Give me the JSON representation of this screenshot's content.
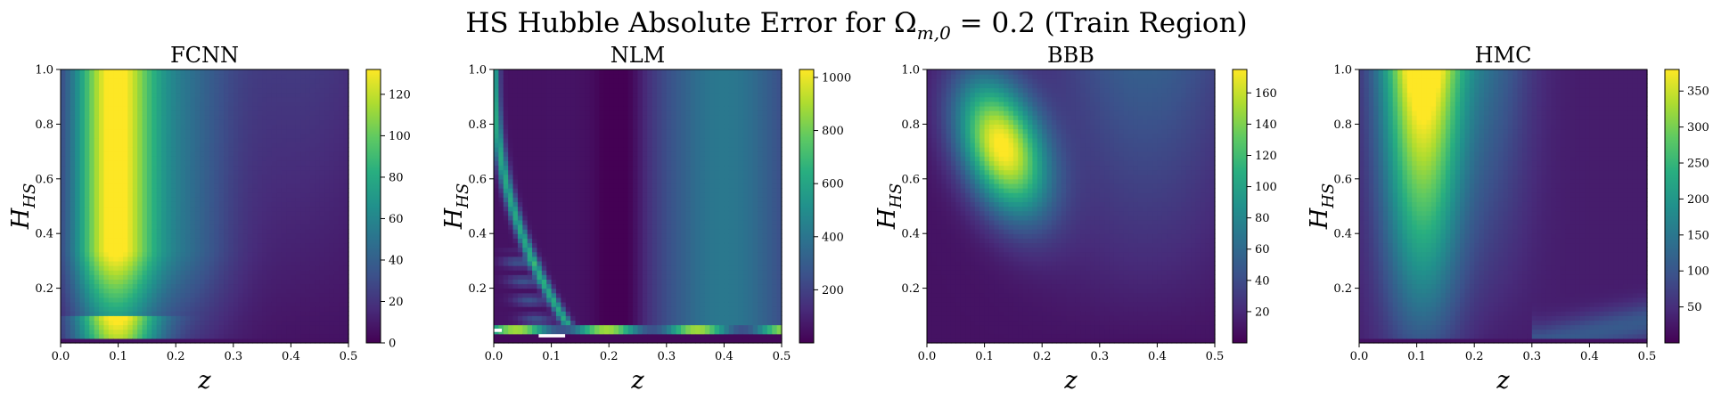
{
  "figure": {
    "title_main": "HS Hubble Absolute Error for Ω",
    "title_sub": "m,0",
    "title_tail": " = 0.2 (Train Region)"
  },
  "chart_data": [
    {
      "type": "heatmap",
      "title": "FCNN",
      "xlabel": "z",
      "ylabel_main": "H",
      "ylabel_sub": "HS",
      "xlim": [
        0,
        0.5
      ],
      "ylim": [
        0,
        1.0
      ],
      "xticks": [
        "0.0",
        "0.1",
        "0.2",
        "0.3",
        "0.4",
        "0.5"
      ],
      "yticks": [
        "0.2",
        "0.4",
        "0.6",
        "0.8",
        "1.0"
      ],
      "colorbar": {
        "range": [
          0,
          132
        ],
        "ticks": [
          "0",
          "20",
          "40",
          "60",
          "80",
          "100",
          "120"
        ],
        "tick_values": [
          0,
          20,
          40,
          60,
          80,
          100,
          120
        ]
      }
    },
    {
      "type": "heatmap",
      "title": "NLM",
      "xlabel": "z",
      "ylabel_main": "H",
      "ylabel_sub": "HS",
      "xlim": [
        0,
        0.5
      ],
      "ylim": [
        0,
        1.0
      ],
      "xticks": [
        "0.0",
        "0.1",
        "0.2",
        "0.3",
        "0.4",
        "0.5"
      ],
      "yticks": [
        "0.2",
        "0.4",
        "0.6",
        "0.8",
        "1.0"
      ],
      "colorbar": {
        "range": [
          0,
          1030
        ],
        "ticks": [
          "200",
          "400",
          "600",
          "800",
          "1000"
        ],
        "tick_values": [
          200,
          400,
          600,
          800,
          1000
        ]
      }
    },
    {
      "type": "heatmap",
      "title": "BBB",
      "xlabel": "z",
      "ylabel_main": "H",
      "ylabel_sub": "HS",
      "xlim": [
        0,
        0.5
      ],
      "ylim": [
        0,
        1.0
      ],
      "xticks": [
        "0.0",
        "0.1",
        "0.2",
        "0.3",
        "0.4",
        "0.5"
      ],
      "yticks": [
        "0.2",
        "0.4",
        "0.6",
        "0.8",
        "1.0"
      ],
      "colorbar": {
        "range": [
          0,
          175
        ],
        "ticks": [
          "20",
          "40",
          "60",
          "80",
          "100",
          "120",
          "140",
          "160"
        ],
        "tick_values": [
          20,
          40,
          60,
          80,
          100,
          120,
          140,
          160
        ]
      }
    },
    {
      "type": "heatmap",
      "title": "HMC",
      "xlabel": "z",
      "ylabel_main": "H",
      "ylabel_sub": "HS",
      "xlim": [
        0,
        0.5
      ],
      "ylim": [
        0,
        1.0
      ],
      "xticks": [
        "0.0",
        "0.1",
        "0.2",
        "0.3",
        "0.4",
        "0.5"
      ],
      "yticks": [
        "0.2",
        "0.4",
        "0.6",
        "0.8",
        "1.0"
      ],
      "colorbar": {
        "range": [
          0,
          380
        ],
        "ticks": [
          "50",
          "100",
          "150",
          "200",
          "250",
          "300",
          "350"
        ],
        "tick_values": [
          50,
          100,
          150,
          200,
          250,
          300,
          350
        ]
      }
    }
  ]
}
